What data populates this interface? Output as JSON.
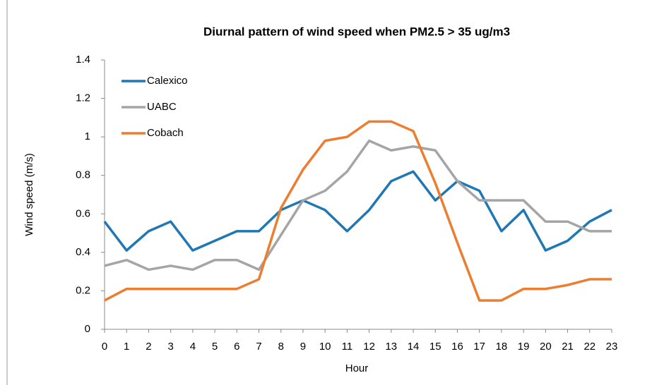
{
  "chart_data": {
    "type": "line",
    "title": "Diurnal pattern of wind speed when PM2.5 > 35 ug/m3",
    "x_label": "Hour",
    "y_label": "Wind speed (m/s)",
    "x": [
      0,
      1,
      2,
      3,
      4,
      5,
      6,
      7,
      8,
      9,
      10,
      11,
      12,
      13,
      14,
      15,
      16,
      17,
      18,
      19,
      20,
      21,
      22,
      23
    ],
    "xlim": [
      0,
      23
    ],
    "xticks": [
      0,
      1,
      2,
      3,
      4,
      5,
      6,
      7,
      8,
      9,
      10,
      11,
      12,
      13,
      14,
      15,
      16,
      17,
      18,
      19,
      20,
      21,
      22,
      23
    ],
    "ylim": [
      0,
      1.4
    ],
    "yticks": [
      0,
      0.2,
      0.4,
      0.6,
      0.8,
      1,
      1.2,
      1.4
    ],
    "grid": false,
    "legend": "upper-left",
    "series": [
      {
        "name": "Calexico",
        "color": "#1f77b4",
        "values": [
          0.56,
          0.41,
          0.51,
          0.56,
          0.41,
          0.46,
          0.51,
          0.51,
          0.62,
          0.67,
          0.62,
          0.51,
          0.62,
          0.77,
          0.82,
          0.67,
          0.77,
          0.72,
          0.51,
          0.62,
          0.41,
          0.46,
          0.56,
          0.62
        ]
      },
      {
        "name": "UABC",
        "color": "#a5a5a5",
        "values": [
          0.33,
          0.36,
          0.31,
          0.33,
          0.31,
          0.36,
          0.36,
          0.31,
          0.49,
          0.67,
          0.72,
          0.82,
          0.98,
          0.93,
          0.95,
          0.93,
          0.77,
          0.67,
          0.67,
          0.67,
          0.56,
          0.56,
          0.51,
          0.51
        ]
      },
      {
        "name": "Cobach",
        "color": "#ed7d31",
        "values": [
          0.15,
          0.21,
          0.21,
          0.21,
          0.21,
          0.21,
          0.21,
          0.26,
          0.63,
          0.83,
          0.98,
          1.0,
          1.08,
          1.08,
          1.03,
          0.76,
          0.45,
          0.15,
          0.15,
          0.21,
          0.21,
          0.23,
          0.26,
          0.26
        ]
      }
    ]
  }
}
